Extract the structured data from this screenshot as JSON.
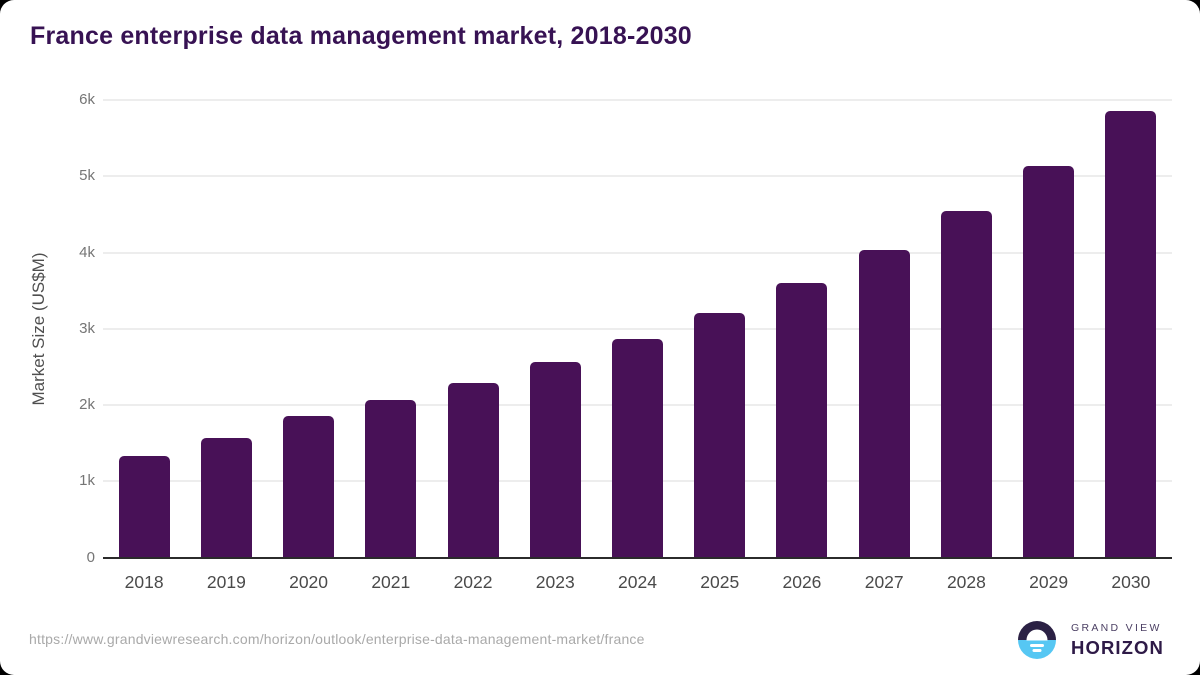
{
  "title": "France enterprise data management market, 2018-2030",
  "y_axis": {
    "label": "Market Size (US$M)"
  },
  "footer": {
    "source_url": "https://www.grandviewresearch.com/horizon/outlook/enterprise-data-management-market/france",
    "logo": {
      "icon": "horizon-sun-icon",
      "line1": "GRAND VIEW",
      "line2": "HORIZON"
    }
  },
  "colors": {
    "bar": "#481157",
    "title_text": "#371253",
    "gridline": "#ededed",
    "axis_line": "#2b2b2b",
    "tick_label": "#757575",
    "x_label": "#4a4a4a",
    "url_text": "#a9a9a9",
    "logo_dark": "#2b2144",
    "logo_blue": "#56c7f3",
    "logo_text_dark": "#2e1a47",
    "logo_text_small": "#4b3f63"
  },
  "chart_data": {
    "type": "bar",
    "title": "France enterprise data management market, 2018-2030",
    "categories": [
      "2018",
      "2019",
      "2020",
      "2021",
      "2022",
      "2023",
      "2024",
      "2025",
      "2026",
      "2027",
      "2028",
      "2029",
      "2030"
    ],
    "values": [
      1335,
      1570,
      1855,
      2065,
      2290,
      2565,
      2865,
      3205,
      3600,
      4030,
      4550,
      5135,
      5855
    ],
    "xlabel": "",
    "ylabel": "Market Size (US$M)",
    "ylim": [
      0,
      6000
    ],
    "yticks": [
      {
        "value": 0,
        "label": "0"
      },
      {
        "value": 1000,
        "label": "1k"
      },
      {
        "value": 2000,
        "label": "2k"
      },
      {
        "value": 3000,
        "label": "3k"
      },
      {
        "value": 4000,
        "label": "4k"
      },
      {
        "value": 5000,
        "label": "5k"
      },
      {
        "value": 6000,
        "label": "6k"
      }
    ],
    "grid": true,
    "legend": false,
    "bar_color": "#481157"
  }
}
